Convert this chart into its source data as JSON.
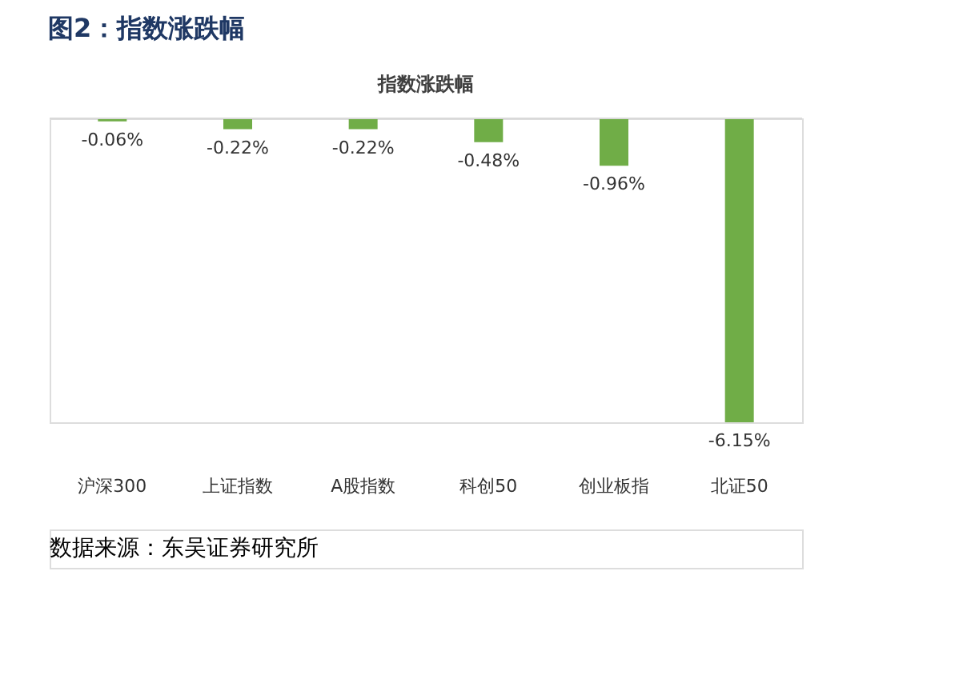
{
  "chart_data": {
    "type": "bar",
    "title": "图2：指数涨跌幅",
    "subtitle": "指数涨跌幅",
    "categories": [
      "沪深300",
      "上证指数",
      "A股指数",
      "科创50",
      "创业板指",
      "北证50"
    ],
    "values": [
      -0.06,
      -0.22,
      -0.22,
      -0.48,
      -0.96,
      -6.15
    ],
    "color": "#70ad47",
    "value_labels": [
      "-0.06%",
      "-0.22%",
      "-0.22%",
      "-0.48%",
      "-0.96%",
      "-6.15%"
    ],
    "annotations": [
      "数据来源：东吴证券研究所"
    ]
  }
}
